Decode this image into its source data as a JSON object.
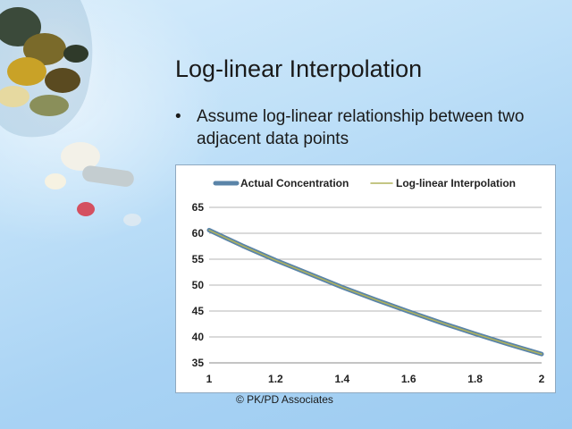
{
  "slide": {
    "title": "Log-linear Interpolation",
    "bullet_marker": "•",
    "bullet_text": "Assume log-linear relationship between two adjacent data points",
    "copyright": "© PK/PD Associates"
  },
  "colors": {
    "actual_series": "#5a84a8",
    "interp_series": "#b0b35c",
    "gridline": "#b5b5b5"
  },
  "chart_data": {
    "type": "line",
    "title": "",
    "xlabel": "",
    "ylabel": "",
    "xlim": [
      1,
      2
    ],
    "ylim": [
      35,
      65
    ],
    "x_ticks": [
      "1",
      "1.2",
      "1.4",
      "1.6",
      "1.8",
      "2"
    ],
    "y_ticks": [
      "65",
      "60",
      "55",
      "50",
      "45",
      "40",
      "35"
    ],
    "grid": true,
    "legend_position": "top",
    "x": [
      1,
      1.1,
      1.2,
      1.3,
      1.4,
      1.5,
      1.6,
      1.7,
      1.8,
      1.9,
      2
    ],
    "series": [
      {
        "name": "Actual Concentration",
        "values": [
          60.6,
          57.6,
          54.8,
          52.2,
          49.6,
          47.2,
          44.9,
          42.7,
          40.6,
          38.6,
          36.7
        ]
      },
      {
        "name": "Log-linear Interpolation",
        "values": [
          60.6,
          57.6,
          54.8,
          52.2,
          49.6,
          47.2,
          44.9,
          42.7,
          40.6,
          38.6,
          36.7
        ]
      }
    ]
  }
}
